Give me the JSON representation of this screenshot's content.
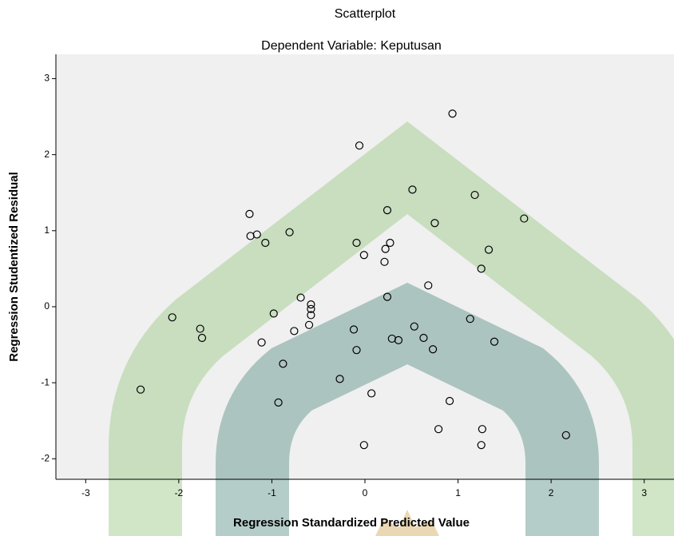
{
  "chart_data": {
    "type": "scatter",
    "title": "Scatterplot",
    "subtitle": "Dependent Variable: Keputusan",
    "x_label": "Regression Standardized Predicted Value",
    "y_label": "Regression Studentized Residual",
    "xlim": [
      -3.32,
      3.32
    ],
    "ylim": [
      -2.27,
      3.32
    ],
    "xticks": [
      -3,
      -2,
      -1,
      0,
      1,
      2,
      3
    ],
    "yticks": [
      -2,
      -1,
      0,
      1,
      2,
      3
    ],
    "color": "#000000",
    "x": [
      0.94,
      -0.06,
      0.51,
      1.18,
      0.24,
      -1.24,
      1.71,
      0.75,
      -0.81,
      -1.23,
      -1.16,
      -1.07,
      -0.09,
      0.27,
      0.22,
      1.33,
      -0.01,
      0.21,
      1.25,
      0.68,
      -0.69,
      0.24,
      -0.58,
      -0.58,
      -0.58,
      -0.98,
      -2.07,
      1.13,
      -0.6,
      0.53,
      -1.77,
      -0.76,
      -0.12,
      -1.75,
      0.29,
      0.36,
      0.63,
      1.39,
      -1.11,
      0.73,
      -0.09,
      -0.88,
      -0.27,
      -2.41,
      0.07,
      -0.93,
      0.91,
      0.79,
      1.26,
      2.16,
      -0.01,
      1.25
    ],
    "values": [
      2.54,
      2.12,
      1.54,
      1.47,
      1.27,
      1.22,
      1.16,
      1.1,
      0.98,
      0.93,
      0.95,
      0.84,
      0.84,
      0.84,
      0.76,
      0.75,
      0.68,
      0.59,
      0.5,
      0.28,
      0.12,
      0.13,
      0.03,
      -0.03,
      -0.11,
      -0.09,
      -0.14,
      -0.16,
      -0.24,
      -0.26,
      -0.29,
      -0.32,
      -0.3,
      -0.41,
      -0.42,
      -0.44,
      -0.41,
      -0.46,
      -0.47,
      -0.56,
      -0.57,
      -0.75,
      -0.95,
      -1.09,
      -1.14,
      -1.26,
      -1.24,
      -1.61,
      -1.61,
      -1.69,
      -1.82,
      -1.82
    ]
  }
}
